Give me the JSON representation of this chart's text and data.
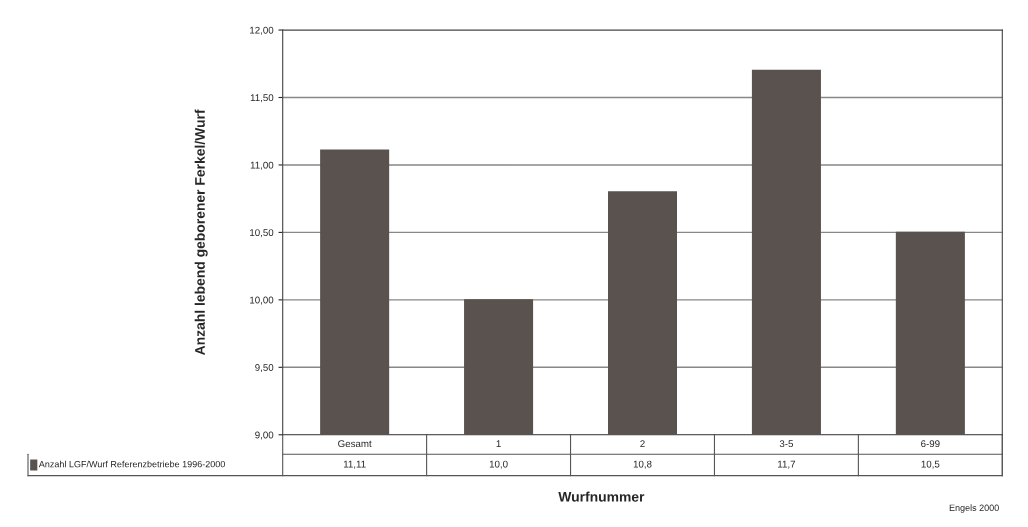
{
  "chart_data": {
    "type": "bar",
    "categories": [
      "Gesamt",
      "1",
      "2",
      "3-5",
      "6-99"
    ],
    "series": [
      {
        "name": "Anzahl LGF/Wurf Referenzbetriebe 1996-2000",
        "color": "#5a524e",
        "values": [
          11.11,
          10.0,
          10.8,
          11.7,
          10.5
        ],
        "value_labels": [
          "11,11",
          "10,0",
          "10,8",
          "11,7",
          "10,5"
        ]
      }
    ],
    "xlabel": "Wurfnummer",
    "ylabel": "Anzahl lebend geborener Ferkel/Wurf",
    "ylim": [
      9,
      12
    ],
    "yticks": [
      {
        "value": 9,
        "label": "9,00"
      },
      {
        "value": 9.5,
        "label": "9,50"
      },
      {
        "value": 10,
        "label": "10,00"
      },
      {
        "value": 10.5,
        "label": "10,50"
      },
      {
        "value": 11,
        "label": "11,00"
      },
      {
        "value": 11.5,
        "label": "11,50"
      },
      {
        "value": 12,
        "label": "12,00"
      }
    ],
    "grid": "y",
    "legend": "bottom",
    "annotations": [
      "Engels 2000"
    ]
  }
}
